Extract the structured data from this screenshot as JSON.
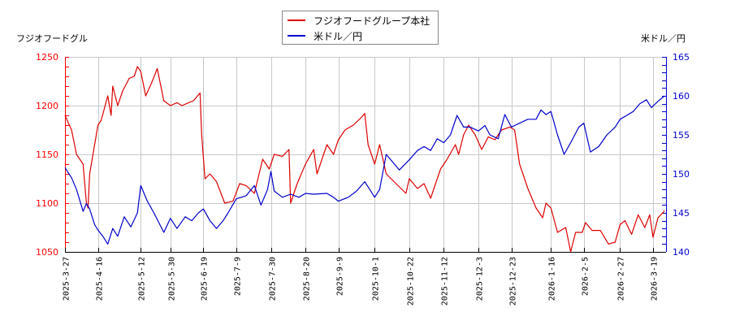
{
  "chart_data": {
    "type": "line",
    "title": "",
    "legend_position": "top-center",
    "grid": true,
    "left_axis": {
      "label": "フジオフードグル",
      "range": [
        1050,
        1250
      ],
      "ticks": [
        1050,
        1100,
        1150,
        1200,
        1250
      ],
      "color": "#ff0000"
    },
    "right_axis": {
      "label": "米ドル／円",
      "range": [
        140,
        165
      ],
      "ticks": [
        140,
        145,
        150,
        155,
        160,
        165
      ],
      "color": "#0000cc"
    },
    "x_ticks": [
      "2025-3-27",
      "2025-4-16",
      "2025-5-12",
      "2025-5-30",
      "2025-6-19",
      "2025-7-9",
      "2025-7-30",
      "2025-8-20",
      "2025-9-9",
      "2025-10-1",
      "2025-10-22",
      "2025-11-12",
      "2025-12-3",
      "2025-12-23",
      "2026-1-16",
      "2026-2-5",
      "2026-2-27",
      "2026-3-19"
    ],
    "series": [
      {
        "name": "フジオフードグループ本社",
        "axis": "left",
        "color": "#dd0000",
        "points": [
          [
            "2025-3-27",
            1190
          ],
          [
            "2025-3-31",
            1175
          ],
          [
            "2025-4-3",
            1150
          ],
          [
            "2025-4-7",
            1140
          ],
          [
            "2025-4-9",
            1100
          ],
          [
            "2025-4-10",
            1095
          ],
          [
            "2025-4-11",
            1130
          ],
          [
            "2025-4-14",
            1160
          ],
          [
            "2025-4-16",
            1180
          ],
          [
            "2025-4-18",
            1185
          ],
          [
            "2025-4-22",
            1210
          ],
          [
            "2025-4-24",
            1190
          ],
          [
            "2025-4-25",
            1220
          ],
          [
            "2025-4-28",
            1200
          ],
          [
            "2025-5-1",
            1215
          ],
          [
            "2025-5-5",
            1228
          ],
          [
            "2025-5-8",
            1230
          ],
          [
            "2025-5-10",
            1240
          ],
          [
            "2025-5-12",
            1235
          ],
          [
            "2025-5-15",
            1210
          ],
          [
            "2025-5-19",
            1225
          ],
          [
            "2025-5-22",
            1238
          ],
          [
            "2025-5-26",
            1205
          ],
          [
            "2025-5-30",
            1200
          ],
          [
            "2025-6-3",
            1203
          ],
          [
            "2025-6-6",
            1200
          ],
          [
            "2025-6-10",
            1203
          ],
          [
            "2025-6-13",
            1205
          ],
          [
            "2025-6-17",
            1213
          ],
          [
            "2025-6-18",
            1170
          ],
          [
            "2025-6-20",
            1125
          ],
          [
            "2025-6-23",
            1130
          ],
          [
            "2025-6-27",
            1122
          ],
          [
            "2025-7-2",
            1100
          ],
          [
            "2025-7-7",
            1102
          ],
          [
            "2025-7-11",
            1120
          ],
          [
            "2025-7-15",
            1118
          ],
          [
            "2025-7-20",
            1110
          ],
          [
            "2025-7-25",
            1145
          ],
          [
            "2025-7-29",
            1135
          ],
          [
            "2025-8-1",
            1150
          ],
          [
            "2025-8-6",
            1148
          ],
          [
            "2025-8-10",
            1155
          ],
          [
            "2025-8-11",
            1100
          ],
          [
            "2025-8-15",
            1120
          ],
          [
            "2025-8-20",
            1140
          ],
          [
            "2025-8-25",
            1155
          ],
          [
            "2025-8-27",
            1130
          ],
          [
            "2025-9-2",
            1160
          ],
          [
            "2025-9-6",
            1150
          ],
          [
            "2025-9-9",
            1165
          ],
          [
            "2025-9-13",
            1175
          ],
          [
            "2025-9-18",
            1180
          ],
          [
            "2025-9-23",
            1188
          ],
          [
            "2025-9-25",
            1192
          ],
          [
            "2025-9-27",
            1160
          ],
          [
            "2025-10-1",
            1140
          ],
          [
            "2025-10-4",
            1160
          ],
          [
            "2025-10-8",
            1130
          ],
          [
            "2025-10-14",
            1120
          ],
          [
            "2025-10-20",
            1110
          ],
          [
            "2025-10-22",
            1125
          ],
          [
            "2025-10-27",
            1115
          ],
          [
            "2025-10-31",
            1120
          ],
          [
            "2025-11-4",
            1105
          ],
          [
            "2025-11-10",
            1135
          ],
          [
            "2025-11-14",
            1145
          ],
          [
            "2025-11-19",
            1160
          ],
          [
            "2025-11-21",
            1150
          ],
          [
            "2025-11-24",
            1170
          ],
          [
            "2025-11-27",
            1180
          ],
          [
            "2025-12-1",
            1170
          ],
          [
            "2025-12-5",
            1155
          ],
          [
            "2025-12-9",
            1168
          ],
          [
            "2025-12-13",
            1165
          ],
          [
            "2025-12-17",
            1175
          ],
          [
            "2025-12-22",
            1178
          ],
          [
            "2025-12-25",
            1175
          ],
          [
            "2025-12-28",
            1140
          ],
          [
            "2026-1-2",
            1115
          ],
          [
            "2026-1-7",
            1095
          ],
          [
            "2026-1-11",
            1085
          ],
          [
            "2026-1-13",
            1100
          ],
          [
            "2026-1-16",
            1095
          ],
          [
            "2026-1-20",
            1070
          ],
          [
            "2026-1-25",
            1075
          ],
          [
            "2026-1-28",
            1050
          ],
          [
            "2026-1-31",
            1070
          ],
          [
            "2026-2-4",
            1070
          ],
          [
            "2026-2-6",
            1080
          ],
          [
            "2026-2-10",
            1072
          ],
          [
            "2026-2-15",
            1072
          ],
          [
            "2026-2-20",
            1058
          ],
          [
            "2026-2-24",
            1060
          ],
          [
            "2026-2-27",
            1078
          ],
          [
            "2026-3-2",
            1082
          ],
          [
            "2026-3-6",
            1068
          ],
          [
            "2026-3-10",
            1088
          ],
          [
            "2026-3-14",
            1075
          ],
          [
            "2026-3-17",
            1088
          ],
          [
            "2026-3-19",
            1065
          ],
          [
            "2026-3-22",
            1085
          ],
          [
            "2026-3-26",
            1092
          ]
        ]
      },
      {
        "name": "米ドル／円",
        "axis": "right",
        "color": "#0000cc",
        "points": [
          [
            "2025-3-27",
            150.8
          ],
          [
            "2025-3-31",
            149.5
          ],
          [
            "2025-4-3",
            148.0
          ],
          [
            "2025-4-7",
            145.2
          ],
          [
            "2025-4-9",
            146.2
          ],
          [
            "2025-4-11",
            145.5
          ],
          [
            "2025-4-14",
            143.5
          ],
          [
            "2025-4-16",
            142.8
          ],
          [
            "2025-4-19",
            142.0
          ],
          [
            "2025-4-22",
            141.0
          ],
          [
            "2025-4-25",
            143.0
          ],
          [
            "2025-4-28",
            142.0
          ],
          [
            "2025-5-2",
            144.5
          ],
          [
            "2025-5-6",
            143.2
          ],
          [
            "2025-5-10",
            145.0
          ],
          [
            "2025-5-12",
            148.5
          ],
          [
            "2025-5-16",
            146.5
          ],
          [
            "2025-5-20",
            145.0
          ],
          [
            "2025-5-26",
            142.5
          ],
          [
            "2025-5-30",
            144.3
          ],
          [
            "2025-6-3",
            143.0
          ],
          [
            "2025-6-8",
            144.5
          ],
          [
            "2025-6-12",
            144.0
          ],
          [
            "2025-6-16",
            145.0
          ],
          [
            "2025-6-19",
            145.5
          ],
          [
            "2025-6-23",
            144.0
          ],
          [
            "2025-6-27",
            143.0
          ],
          [
            "2025-7-1",
            144.0
          ],
          [
            "2025-7-4",
            145.0
          ],
          [
            "2025-7-9",
            146.8
          ],
          [
            "2025-7-15",
            147.2
          ],
          [
            "2025-7-20",
            148.5
          ],
          [
            "2025-7-24",
            146.0
          ],
          [
            "2025-7-28",
            148.0
          ],
          [
            "2025-7-30",
            150.3
          ],
          [
            "2025-8-1",
            147.8
          ],
          [
            "2025-8-6",
            147.0
          ],
          [
            "2025-8-11",
            147.4
          ],
          [
            "2025-8-16",
            147.0
          ],
          [
            "2025-8-20",
            147.5
          ],
          [
            "2025-8-25",
            147.4
          ],
          [
            "2025-9-2",
            147.5
          ],
          [
            "2025-9-6",
            147.0
          ],
          [
            "2025-9-9",
            146.5
          ],
          [
            "2025-9-15",
            147.0
          ],
          [
            "2025-9-20",
            147.8
          ],
          [
            "2025-9-25",
            149.0
          ],
          [
            "2025-10-1",
            147.0
          ],
          [
            "2025-10-4",
            148.0
          ],
          [
            "2025-10-8",
            152.5
          ],
          [
            "2025-10-12",
            151.5
          ],
          [
            "2025-10-16",
            150.5
          ],
          [
            "2025-10-22",
            151.8
          ],
          [
            "2025-10-27",
            153.0
          ],
          [
            "2025-10-31",
            153.5
          ],
          [
            "2025-11-4",
            153.0
          ],
          [
            "2025-11-8",
            154.5
          ],
          [
            "2025-11-12",
            154.0
          ],
          [
            "2025-11-16",
            155.0
          ],
          [
            "2025-11-20",
            157.5
          ],
          [
            "2025-11-24",
            156.0
          ],
          [
            "2025-11-28",
            156.0
          ],
          [
            "2025-12-3",
            155.5
          ],
          [
            "2025-12-7",
            156.2
          ],
          [
            "2025-12-10",
            155.0
          ],
          [
            "2025-12-15",
            154.5
          ],
          [
            "2025-12-19",
            157.6
          ],
          [
            "2025-12-23",
            156.0
          ],
          [
            "2025-12-28",
            156.5
          ],
          [
            "2026-1-2",
            157.0
          ],
          [
            "2026-1-7",
            157.0
          ],
          [
            "2026-1-10",
            158.2
          ],
          [
            "2026-1-13",
            157.6
          ],
          [
            "2026-1-16",
            158.0
          ],
          [
            "2026-1-20",
            155.0
          ],
          [
            "2026-1-24",
            152.5
          ],
          [
            "2026-1-28",
            154.0
          ],
          [
            "2026-2-2",
            156.0
          ],
          [
            "2026-2-5",
            156.5
          ],
          [
            "2026-2-9",
            152.8
          ],
          [
            "2026-2-14",
            153.5
          ],
          [
            "2026-2-19",
            155.0
          ],
          [
            "2026-2-24",
            156.0
          ],
          [
            "2026-2-27",
            157.0
          ],
          [
            "2026-3-3",
            157.5
          ],
          [
            "2026-3-7",
            158.0
          ],
          [
            "2026-3-11",
            159.0
          ],
          [
            "2026-3-15",
            159.5
          ],
          [
            "2026-3-18",
            158.5
          ],
          [
            "2026-3-22",
            159.3
          ],
          [
            "2026-3-26",
            160.0
          ]
        ]
      }
    ]
  },
  "legend": {
    "items": [
      {
        "label": "フジオフードグループ本社",
        "color": "#dd0000"
      },
      {
        "label": "米ドル／円",
        "color": "#0000cc"
      }
    ]
  },
  "axes": {
    "left_title": "フジオフードグル",
    "right_title": "米ドル／円"
  }
}
